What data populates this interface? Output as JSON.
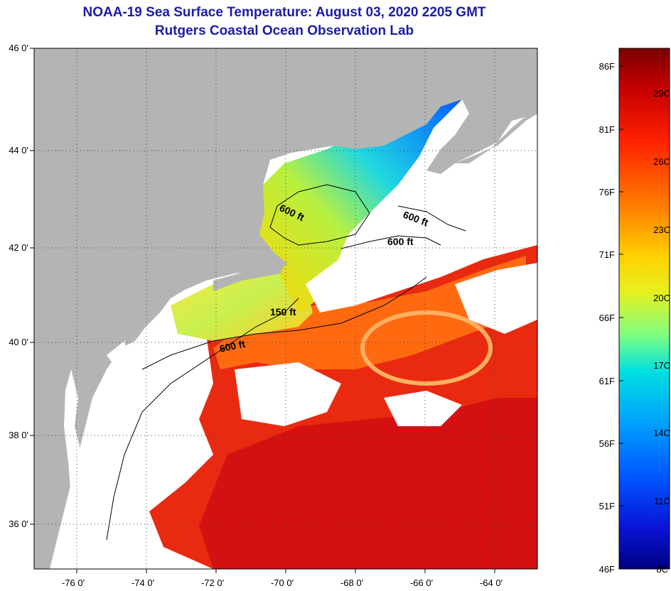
{
  "header": {
    "title": "NOAA-19 Sea Surface Temperature:  August 03, 2020 2205 GMT",
    "subtitle": "Rutgers Coastal Ocean Observation Lab"
  },
  "map": {
    "lat_labels": [
      "46 0'",
      "44 0'",
      "42 0'",
      "40 0'",
      "38 0'",
      "36 0'"
    ],
    "lon_labels": [
      "-76 0'",
      "-74 0'",
      "-72 0'",
      "-70 0'",
      "-68 0'",
      "-66 0'",
      "-64 0'"
    ],
    "contour_labels": [
      "600 ft",
      "600 ft",
      "600 ft",
      "150 ft",
      "600 ft"
    ],
    "land_color": "#b4b4b4",
    "cloud_color": "#ffffff"
  },
  "colorbar": {
    "f_labels": [
      "86F",
      "81F",
      "76F",
      "71F",
      "66F",
      "61F",
      "56F",
      "51F",
      "46F"
    ],
    "c_labels": [
      "29C",
      "26C",
      "23C",
      "20C",
      "17C",
      "14C",
      "11C",
      "8C"
    ],
    "scale_colors": [
      "#7a0000",
      "#d40000",
      "#ff3a00",
      "#ff8c00",
      "#ffd700",
      "#d9f020",
      "#7dff7d",
      "#00e6e6",
      "#00a0ff",
      "#0050ff",
      "#1010d0",
      "#000080"
    ]
  }
}
